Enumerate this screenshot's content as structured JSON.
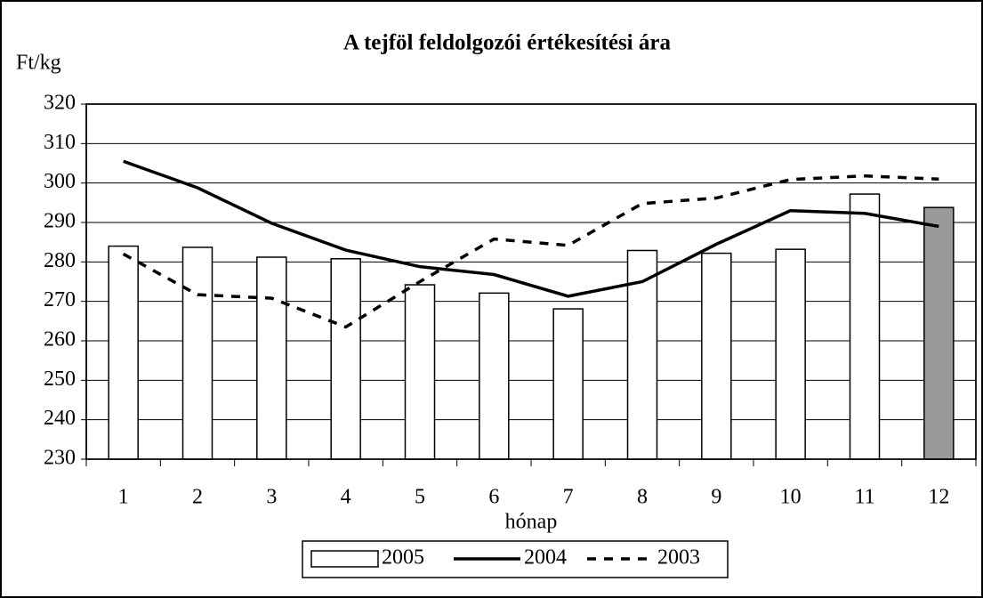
{
  "chart_data": {
    "type": "bar_line",
    "title": "A tejföl feldolgozói értékesítési ára",
    "y_label": "Ft/kg",
    "x_label": "hónap",
    "categories": [
      "1",
      "2",
      "3",
      "4",
      "5",
      "6",
      "7",
      "8",
      "9",
      "10",
      "11",
      "12"
    ],
    "series": [
      {
        "name": "2005",
        "type": "bar",
        "colors": [
          "#ffffff",
          "#ffffff",
          "#ffffff",
          "#ffffff",
          "#ffffff",
          "#ffffff",
          "#ffffff",
          "#ffffff",
          "#ffffff",
          "#ffffff",
          "#ffffff",
          "#999999"
        ],
        "values": [
          284,
          283.7,
          281.2,
          280.8,
          274.2,
          272.1,
          268.1,
          282.9,
          282.2,
          283.2,
          297.2,
          293.8
        ]
      },
      {
        "name": "2004",
        "type": "line",
        "color": "#000000",
        "dash": "solid",
        "values": [
          305.5,
          298.8,
          289.8,
          283,
          278.8,
          276.8,
          271.3,
          275,
          284.5,
          293,
          292.3,
          289
        ]
      },
      {
        "name": "2003",
        "type": "line",
        "color": "#000000",
        "dash": "dashed",
        "values": [
          282,
          271.7,
          270.8,
          263.5,
          275,
          285.8,
          284.2,
          294.8,
          296.2,
          300.9,
          301.8,
          301
        ]
      }
    ],
    "ylim": [
      230,
      320
    ],
    "yticks": [
      230,
      240,
      250,
      260,
      270,
      280,
      290,
      300,
      310,
      320
    ],
    "grid": true,
    "legend": "bottom"
  }
}
